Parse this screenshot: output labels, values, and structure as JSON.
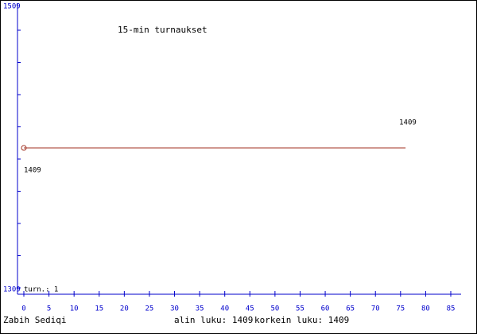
{
  "chart_data": {
    "type": "line",
    "title": "15-min turnaukset",
    "x": [
      0,
      76
    ],
    "values": [
      1409,
      1409
    ],
    "color": "#a03020",
    "xlim": [
      0,
      85
    ],
    "xticks": [
      0,
      5,
      10,
      15,
      20,
      25,
      30,
      35,
      40,
      45,
      50,
      55,
      60,
      65,
      70,
      75,
      80,
      85
    ],
    "ylim": [
      1309,
      1509
    ],
    "yticks": [
      1309,
      1509
    ],
    "axis_color": "#0000cc",
    "annotation": "turn.: 1",
    "footer": {
      "author": "Zabih Sediqi",
      "min": "alin luku: 1409",
      "max": "korkein luku: 1409"
    }
  }
}
